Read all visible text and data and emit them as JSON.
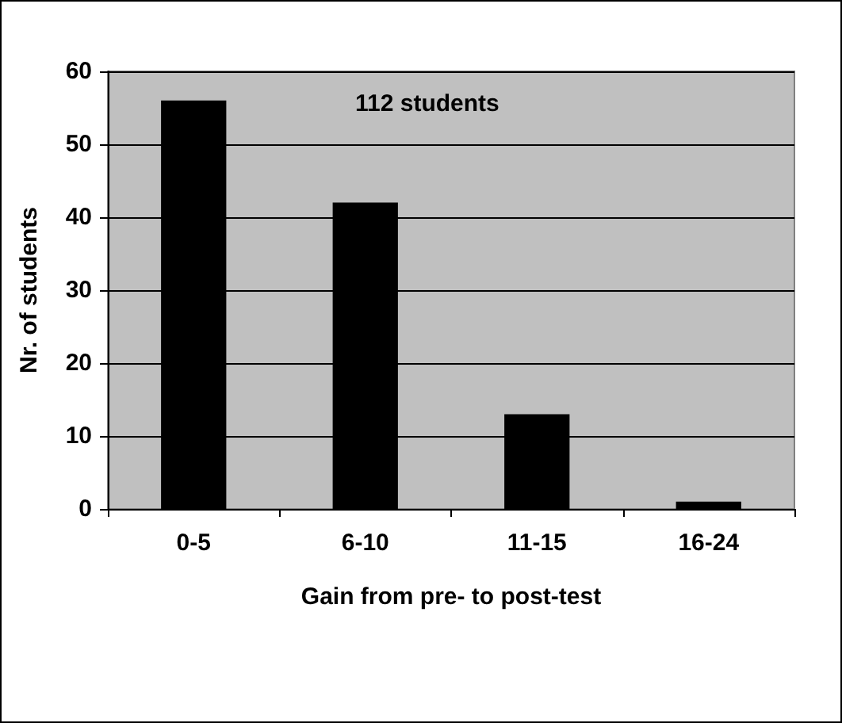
{
  "chart_data": {
    "type": "bar",
    "categories": [
      "0-5",
      "6-10",
      "11-15",
      "16-24"
    ],
    "values": [
      56,
      42,
      13,
      1
    ],
    "color": "#000000",
    "xlabel": "Gain from pre- to post-test",
    "ylabel": "Nr. of students",
    "annotations": [
      "112 students"
    ],
    "ylim": [
      0,
      60
    ],
    "yticks": [
      0,
      10,
      20,
      30,
      40,
      50,
      60
    ],
    "grid": "y"
  }
}
